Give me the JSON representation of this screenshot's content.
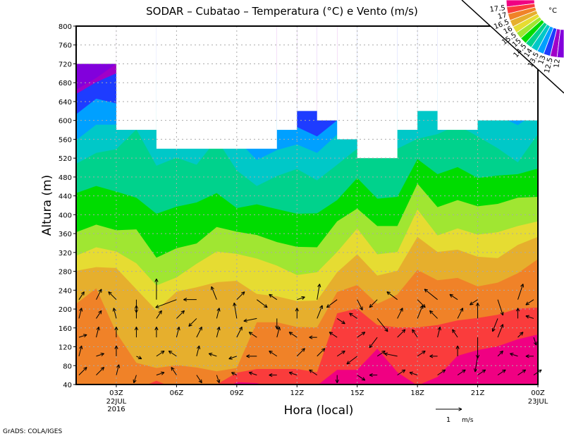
{
  "chart_data": {
    "type": "contour",
    "title": "SODAR  –  Cubatao  –  Temperatura (°C) e Vento (m/s)",
    "xlabel": "Hora (local)",
    "ylabel": "Altura (m)",
    "xlim_hours": [
      1,
      24
    ],
    "ylim": [
      40,
      800
    ],
    "yticks": [
      40,
      80,
      120,
      160,
      200,
      240,
      280,
      320,
      360,
      400,
      440,
      480,
      520,
      560,
      600,
      640,
      680,
      720,
      760,
      800
    ],
    "xticks": [
      {
        "hour": 3,
        "label": "03Z",
        "sub": [
          "22JUL",
          "2016"
        ]
      },
      {
        "hour": 6,
        "label": "06Z",
        "sub": []
      },
      {
        "hour": 9,
        "label": "09Z",
        "sub": []
      },
      {
        "hour": 12,
        "label": "12Z",
        "sub": []
      },
      {
        "hour": 15,
        "label": "15Z",
        "sub": []
      },
      {
        "hour": 18,
        "label": "18Z",
        "sub": []
      },
      {
        "hour": 21,
        "label": "21Z",
        "sub": []
      },
      {
        "hour": 24,
        "label": "00Z",
        "sub": [
          "23JUL"
        ]
      }
    ],
    "grid": true,
    "levels": [
      12,
      12.5,
      13,
      13.5,
      14,
      14.5,
      15,
      15.5,
      16,
      16.5,
      17,
      17.5
    ],
    "level_labels": [
      "12",
      "12.5",
      "13",
      "13.5",
      "14",
      "14.5",
      "15",
      "15.5",
      "16",
      "16.5",
      "17",
      "17.5"
    ],
    "colors_cold_to_warm": [
      "#8200dc",
      "#a000c8",
      "#1e3cff",
      "#00a0ff",
      "#00c8c8",
      "#00d28c",
      "#00dc00",
      "#a0e632",
      "#e6dc32",
      "#e6af2d",
      "#f08228",
      "#fa3c3c",
      "#f00082"
    ],
    "legend_unit": "°C",
    "legend_position": "top-right",
    "hours": [
      1,
      2,
      3,
      4,
      5,
      6,
      7,
      8,
      9,
      10,
      11,
      12,
      13,
      14,
      15,
      16,
      17,
      18,
      19,
      20,
      21,
      22,
      23,
      24
    ],
    "isotherm_heights_m": [
      [
        665,
        656,
        613,
        558,
        508,
        446,
        363,
        313,
        281,
        211,
        30,
        20
      ],
      [
        690,
        681,
        646,
        591,
        531,
        461,
        379,
        331,
        289,
        244,
        30,
        20
      ],
      [
        720,
        700,
        636,
        591,
        539,
        449,
        367,
        322,
        287,
        150,
        30,
        20
      ],
      [
        800,
        800,
        700,
        620,
        581,
        436,
        369,
        297,
        242,
        86,
        30,
        20
      ],
      [
        800,
        800,
        700,
        620,
        504,
        402,
        309,
        250,
        197,
        75,
        48,
        20
      ],
      [
        800,
        800,
        700,
        600,
        521,
        417,
        329,
        267,
        237,
        81,
        30,
        20
      ],
      [
        800,
        800,
        700,
        600,
        506,
        426,
        339,
        296,
        246,
        76,
        30,
        20
      ],
      [
        800,
        800,
        700,
        620,
        560,
        446,
        374,
        322,
        257,
        68,
        40,
        20
      ],
      [
        800,
        800,
        700,
        560,
        494,
        414,
        364,
        317,
        260,
        75,
        65,
        45
      ],
      [
        800,
        800,
        620,
        516,
        461,
        422,
        357,
        307,
        232,
        172,
        73,
        43
      ],
      [
        800,
        700,
        600,
        537,
        482,
        412,
        342,
        292,
        227,
        172,
        73,
        30
      ],
      [
        700,
        640,
        586,
        549,
        497,
        402,
        332,
        272,
        217,
        162,
        73,
        30
      ],
      [
        700,
        620,
        566,
        531,
        473,
        403,
        331,
        278,
        218,
        161,
        66,
        38
      ],
      [
        800,
        700,
        600,
        570,
        506,
        431,
        386,
        321,
        278,
        236,
        191,
        71
      ],
      [
        800,
        800,
        700,
        600,
        540,
        478,
        413,
        371,
        316,
        251,
        201,
        71
      ],
      [
        800,
        800,
        700,
        600,
        540,
        434,
        376,
        316,
        271,
        211,
        166,
        116
      ],
      [
        800,
        800,
        700,
        600,
        540,
        438,
        376,
        321,
        281,
        231,
        161,
        66
      ],
      [
        800,
        800,
        700,
        640,
        561,
        518,
        466,
        411,
        353,
        283,
        161,
        38
      ],
      [
        800,
        800,
        700,
        620,
        571,
        486,
        416,
        356,
        321,
        261,
        166,
        56
      ],
      [
        800,
        800,
        700,
        620,
        590,
        501,
        431,
        371,
        326,
        266,
        176,
        101
      ],
      [
        800,
        800,
        700,
        610,
        566,
        478,
        418,
        358,
        311,
        248,
        181,
        113
      ],
      [
        800,
        800,
        700,
        610,
        541,
        483,
        423,
        363,
        308,
        256,
        188,
        121
      ],
      [
        800,
        800,
        620,
        590,
        511,
        486,
        436,
        376,
        336,
        276,
        201,
        136
      ],
      [
        800,
        800,
        700,
        620,
        571,
        498,
        438,
        386,
        353,
        306,
        203,
        146
      ]
    ],
    "data_top_m": [
      [
        1,
        3,
        720
      ],
      [
        3,
        5,
        580
      ],
      [
        5,
        11,
        540
      ],
      [
        11,
        12,
        580
      ],
      [
        12,
        13,
        620
      ],
      [
        13,
        14,
        600
      ],
      [
        14,
        15,
        560
      ],
      [
        15,
        17,
        520
      ],
      [
        17,
        18,
        580
      ],
      [
        18,
        19,
        620
      ],
      [
        19,
        21,
        580
      ],
      [
        21,
        24,
        600
      ]
    ],
    "wind": {
      "heights_m": [
        60,
        100,
        140,
        180,
        220
      ],
      "uv_ms_by_hour": [
        [
          [
            0.3,
            0.3
          ],
          [
            0.1,
            0.4
          ],
          [
            0.3,
            0.1
          ],
          [
            0.1,
            0.4
          ],
          [
            0.2,
            0.3
          ]
        ],
        [
          [
            0.3,
            0.3
          ],
          [
            0.3,
            0.1
          ],
          [
            0.1,
            0.4
          ],
          [
            0.2,
            0.3
          ],
          [
            0.2,
            0.4
          ]
        ],
        [
          [
            0.1,
            0.4
          ],
          [
            0,
            0.4
          ],
          [
            0,
            0.4
          ],
          [
            -0.1,
            0.4
          ],
          [
            -0.3,
            0.3
          ]
        ],
        [
          [
            -0.1,
            -0.3
          ],
          [
            0.2,
            -0.1
          ],
          [
            0,
            0.4
          ],
          [
            0,
            0.5
          ],
          [
            0,
            -0.5
          ]
        ],
        [
          [
            0.3,
            0.1
          ],
          [
            0.3,
            0.2
          ],
          [
            0,
            0.4
          ],
          [
            0.2,
            0.3
          ],
          [
            0,
            0.8
          ]
        ],
        [
          [
            -0.2,
            0.3
          ],
          [
            -0.3,
            0.2
          ],
          [
            0.1,
            0.4
          ],
          [
            0.3,
            0.3
          ],
          [
            -0.8,
            -0.3
          ]
        ],
        [
          [
            0.2,
            -0.3
          ],
          [
            0.1,
            0.4
          ],
          [
            0.2,
            0.4
          ],
          [
            -0.3,
            -0.3
          ],
          [
            -0.5,
            0
          ]
        ],
        [
          [
            0.1,
            -0.3
          ],
          [
            -0.3,
            0.1
          ],
          [
            0.1,
            0.4
          ],
          [
            0.1,
            0.4
          ],
          [
            -0.2,
            0.5
          ]
        ],
        [
          [
            -0.2,
            0.1
          ],
          [
            -0.3,
            -0.1
          ],
          [
            0.2,
            0.4
          ],
          [
            -0.1,
            0.6
          ],
          [
            0.3,
            0.3
          ]
        ],
        [
          [
            -0.3,
            0.1
          ],
          [
            -0.4,
            0
          ],
          [
            -0.3,
            0.2
          ],
          [
            -0.5,
            -0.1
          ],
          [
            0.4,
            -0.3
          ]
        ],
        [
          [
            -0.3,
            0
          ],
          [
            -0.3,
            0.2
          ],
          [
            0.1,
            0.4
          ],
          [
            0,
            -0.4
          ],
          [
            -0.3,
            0.2
          ]
        ],
        [
          [
            -0.3,
            0.1
          ],
          [
            0.3,
            0.3
          ],
          [
            -0.3,
            0.2
          ],
          [
            0,
            0.4
          ],
          [
            0.3,
            0.1
          ]
        ],
        [
          [
            -0.3,
            0.2
          ],
          [
            0.3,
            0.3
          ],
          [
            -0.3,
            0
          ],
          [
            0.2,
            0.5
          ],
          [
            0.1,
            0.6
          ]
        ],
        [
          [
            0,
            -0.3
          ],
          [
            0.3,
            0.2
          ],
          [
            -0.3,
            0.2
          ],
          [
            0.3,
            -0.2
          ],
          [
            -0.4,
            -0.3
          ]
        ],
        [
          [
            0.3,
            -0.2
          ],
          [
            -0.4,
            -0.3
          ],
          [
            0.3,
            0.2
          ],
          [
            -0.3,
            0.2
          ],
          [
            0.2,
            -0.4
          ]
        ],
        [
          [
            -0.3,
            0
          ],
          [
            0.3,
            0.2
          ],
          [
            -0.3,
            -0.4
          ],
          [
            0.4,
            -0.5
          ],
          [
            -0.3,
            -0.3
          ]
        ],
        [
          [
            0.3,
            0.2
          ],
          [
            -0.5,
            0.1
          ],
          [
            0.3,
            0.3
          ],
          [
            0.2,
            0.4
          ],
          [
            -0.4,
            0.3
          ]
        ],
        [
          [
            -0.3,
            0.1
          ],
          [
            0.3,
            0.2
          ],
          [
            -0.2,
            0.3
          ],
          [
            0.2,
            0.5
          ],
          [
            0.3,
            -0.3
          ]
        ],
        [
          [
            0.3,
            0.2
          ],
          [
            -0.3,
            0
          ],
          [
            0.1,
            0.4
          ],
          [
            -0.3,
            0.3
          ],
          [
            -0.5,
            0.4
          ]
        ],
        [
          [
            0.3,
            0.2
          ],
          [
            0,
            0.4
          ],
          [
            -0.2,
            0.3
          ],
          [
            0.2,
            0.4
          ],
          [
            -0.3,
            0.2
          ]
        ],
        [
          [
            0.3,
            0.2
          ],
          [
            -0.1,
            -0.6
          ],
          [
            0,
            -0.8
          ],
          [
            0,
            0.6
          ],
          [
            -0.3,
            -0.2
          ]
        ],
        [
          [
            0.3,
            0.2
          ],
          [
            0.2,
            0.2
          ],
          [
            0.2,
            0.5
          ],
          [
            -0.2,
            -0.5
          ],
          [
            0.2,
            -0.6
          ]
        ],
        [
          [
            0.3,
            0.2
          ],
          [
            -0.3,
            0.1
          ],
          [
            0.2,
            0.2
          ],
          [
            0,
            0.4
          ],
          [
            0.2,
            0.6
          ]
        ],
        [
          [
            0.3,
            0.2
          ],
          [
            -0.3,
            0
          ],
          [
            0.1,
            -0.3
          ],
          [
            -0.3,
            0.1
          ],
          [
            -0.3,
            -0.2
          ]
        ]
      ],
      "reference_value": 1,
      "reference_label": "1",
      "reference_unit": "m/s"
    }
  },
  "footer": "GrADS: COLA/IGES"
}
